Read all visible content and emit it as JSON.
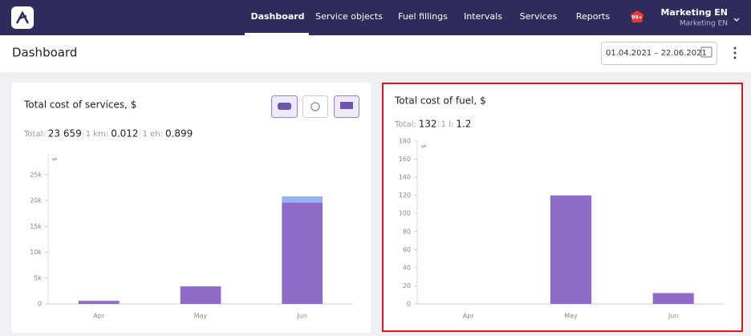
{
  "nav": {
    "items": [
      "Dashboard",
      "Service objects",
      "Fuel fillings",
      "Intervals",
      "Services",
      "Reports"
    ],
    "badge": "99+",
    "user_name": "Marketing EN",
    "user_org": "Marketing EN"
  },
  "header": {
    "title": "Dashboard",
    "date_range": "01.04.2021 – 22.06.2021"
  },
  "chart_data": [
    {
      "type": "bar",
      "title": "Total cost of services, $",
      "stats": [
        {
          "label": "Total:",
          "value": "23 659"
        },
        {
          "label": "1 km:",
          "value": "0.012"
        },
        {
          "label": "1 eh:",
          "value": "0.899"
        }
      ],
      "y_label": "$",
      "categories": [
        "Apr",
        "May",
        "Jun"
      ],
      "stacked": true,
      "series": [
        {
          "color": "#8e6bc8",
          "values": [
            600,
            3400,
            19600
          ]
        },
        {
          "color": "#93b3ee",
          "values": [
            0,
            0,
            1200
          ]
        }
      ],
      "ylim": [
        0,
        29000
      ],
      "yticks": [
        0,
        {
          "value": 5000,
          "label": "5k"
        },
        {
          "value": 10000,
          "label": "10k"
        },
        {
          "value": 15000,
          "label": "15k"
        },
        {
          "value": 20000,
          "label": "20k"
        },
        {
          "value": 25000,
          "label": "25k"
        }
      ]
    },
    {
      "type": "bar",
      "title": "Total cost of fuel, $",
      "stats": [
        {
          "label": "Total:",
          "value": "132"
        },
        {
          "label": "1 l:",
          "value": "1.2"
        }
      ],
      "y_label": "$",
      "categories": [
        "Apr",
        "May",
        "Jun"
      ],
      "values": [
        0,
        120,
        12
      ],
      "color": "#8e6bc8",
      "ylim": [
        0,
        180
      ],
      "yticks": [
        0,
        20,
        40,
        60,
        80,
        100,
        120,
        140,
        160,
        180
      ]
    }
  ]
}
